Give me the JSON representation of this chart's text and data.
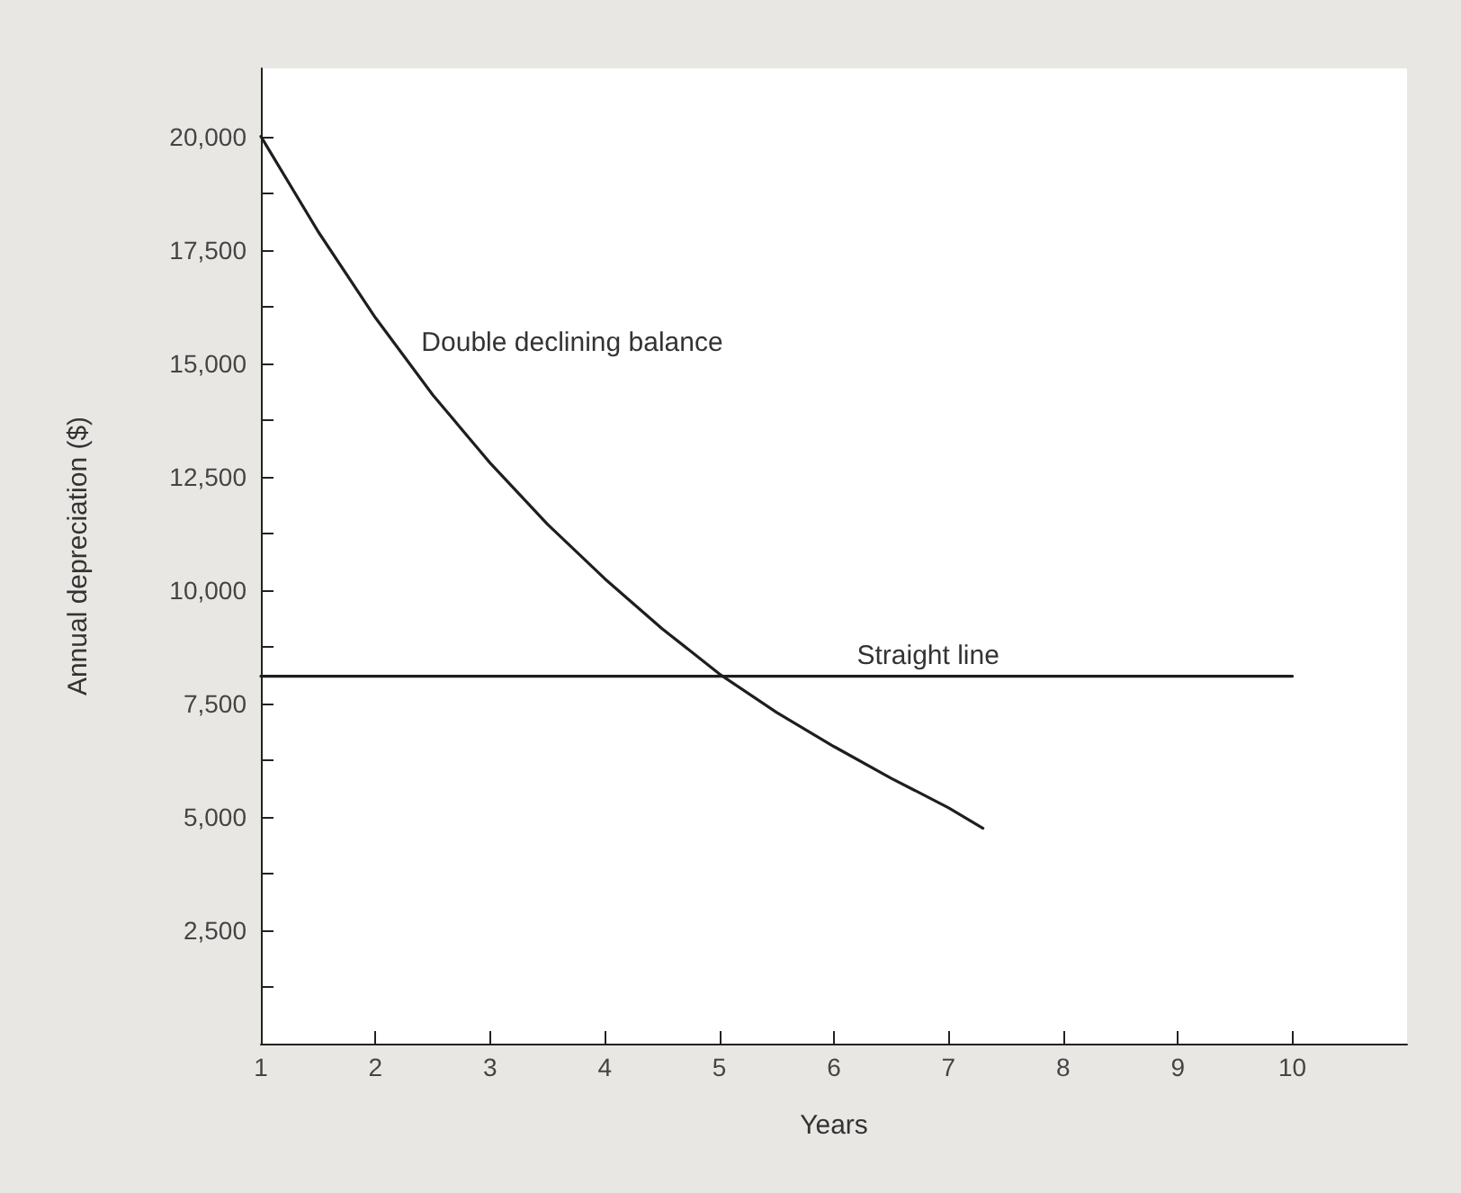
{
  "chart_data": {
    "type": "line",
    "xlabel": "Years",
    "ylabel": "Annual depreciation ($)",
    "series": [
      {
        "color": "#1e1e1e",
        "x": [
          1,
          1.5,
          2,
          2.5,
          3,
          3.5,
          4,
          4.5,
          5,
          5.5,
          6,
          6.5,
          7,
          7.3
        ],
        "values": [
          20000,
          17900,
          16000,
          14300,
          12800,
          11450,
          10250,
          9150,
          8150,
          7300,
          6550,
          5850,
          5200,
          4750
        ]
      },
      {
        "color": "#1e1e1e",
        "x": [
          1,
          10
        ],
        "values": [
          8100,
          8100
        ]
      }
    ],
    "annotations": [
      {
        "text": "Double declining balance",
        "x": 2.4,
        "y": 15000
      },
      {
        "text": "Straight line",
        "x": 6.2,
        "y": 8100
      }
    ],
    "xlim": [
      1,
      11
    ],
    "xticks": [
      1,
      2,
      3,
      4,
      5,
      6,
      7,
      8,
      9,
      10
    ],
    "ylim": [
      0,
      21500
    ],
    "yticks": [
      {
        "value": 1250,
        "label": null
      },
      {
        "value": 2500,
        "label": "2,500"
      },
      {
        "value": 3750,
        "label": null
      },
      {
        "value": 5000,
        "label": "5,000"
      },
      {
        "value": 6250,
        "label": null
      },
      {
        "value": 7500,
        "label": "7,500"
      },
      {
        "value": 8750,
        "label": null
      },
      {
        "value": 10000,
        "label": "10,000"
      },
      {
        "value": 11250,
        "label": null
      },
      {
        "value": 12500,
        "label": "12,500"
      },
      {
        "value": 13750,
        "label": null
      },
      {
        "value": 15000,
        "label": "15,000"
      },
      {
        "value": 16250,
        "label": null
      },
      {
        "value": 17500,
        "label": "17,500"
      },
      {
        "value": 18750,
        "label": null
      },
      {
        "value": 20000,
        "label": "20,000"
      }
    ],
    "grid": false,
    "marker": "none",
    "line_style": "solid"
  }
}
